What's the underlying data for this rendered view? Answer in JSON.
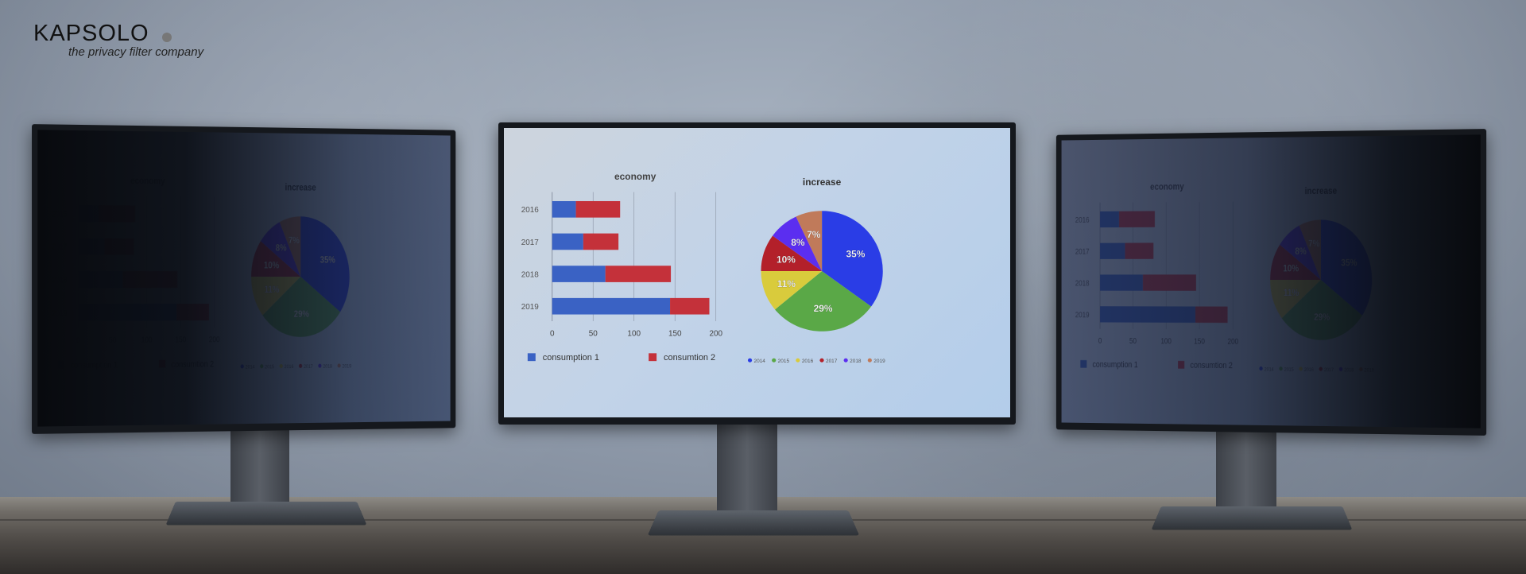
{
  "logo": {
    "name": "KAPSOLO",
    "tagline": "the privacy filter company"
  },
  "chart_data": [
    {
      "type": "bar",
      "orientation": "horizontal",
      "stacked": true,
      "title": "economy",
      "categories": [
        "2016",
        "2017",
        "2018",
        "2019"
      ],
      "series": [
        {
          "name": "consumption  1",
          "color": "#3a62c4",
          "values": [
            29,
            38,
            65,
            144
          ]
        },
        {
          "name": "consumtion 2",
          "color": "#c4313a",
          "values": [
            54,
            43,
            80,
            48
          ]
        }
      ],
      "xlim": [
        0,
        200
      ],
      "xticks": [
        "0",
        "50",
        "100",
        "150",
        "200"
      ],
      "grid": true,
      "legend": "bottom"
    },
    {
      "type": "pie",
      "title": "increase",
      "labels": [
        "2014",
        "2015",
        "2016",
        "2017",
        "2018",
        "2019"
      ],
      "values": [
        35,
        29,
        11,
        10,
        8,
        7
      ],
      "data_labels": [
        "35%",
        "29%",
        "11%",
        "10%",
        "8%",
        "7%"
      ],
      "colors": [
        "#2a3de6",
        "#5aa847",
        "#d9cb3c",
        "#b3202a",
        "#5b2ef0",
        "#c07a5a"
      ],
      "legend": "bottom"
    }
  ]
}
